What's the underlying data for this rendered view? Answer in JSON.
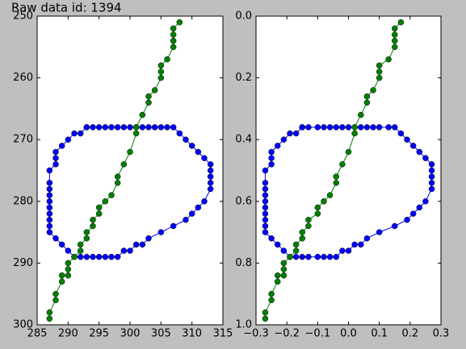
{
  "title": "Raw data id: 1394",
  "chart_data": [
    {
      "type": "line",
      "xlim": [
        285,
        315
      ],
      "xticks": [
        285,
        290,
        295,
        300,
        305,
        310,
        315
      ],
      "ylim": [
        300,
        250
      ],
      "yticks": [
        250,
        260,
        270,
        280,
        290,
        300
      ],
      "series": [
        {
          "color": "#0000ff",
          "x": [
            293,
            294,
            295,
            296,
            297,
            298,
            299,
            300,
            301,
            302,
            303,
            304,
            305,
            306,
            307,
            308,
            309,
            310,
            311,
            312,
            313,
            313,
            313,
            313,
            313,
            312,
            311,
            310,
            309,
            307,
            305,
            303,
            302,
            301,
            300,
            299,
            298,
            297,
            296,
            295,
            294,
            293,
            292,
            291,
            290,
            289,
            288,
            287,
            287,
            287,
            287,
            287,
            287,
            287,
            287,
            287,
            287,
            288,
            288,
            288,
            289,
            290,
            291,
            292,
            293
          ],
          "values": [
            268,
            268,
            268,
            268,
            268,
            268,
            268,
            268,
            268,
            268,
            268,
            268,
            268,
            268,
            268,
            269,
            270,
            271,
            272,
            273,
            274,
            275,
            276,
            277,
            278,
            280,
            281,
            282,
            283,
            284,
            285,
            286,
            287,
            287,
            288,
            288,
            289,
            289,
            289,
            289,
            289,
            289,
            289,
            289,
            288,
            287,
            286,
            285,
            284,
            283,
            282,
            281,
            280,
            279,
            278,
            277,
            275,
            274,
            273,
            272,
            271,
            270,
            269,
            269,
            268
          ]
        },
        {
          "color": "#008000",
          "x": [
            287,
            287,
            288,
            288,
            289,
            289,
            290,
            290,
            290,
            291,
            292,
            292,
            293,
            293,
            294,
            294,
            295,
            295,
            296,
            297,
            298,
            298,
            299,
            300,
            301,
            301,
            302,
            303,
            303,
            304,
            305,
            305,
            305,
            306,
            307,
            307,
            307,
            307,
            308
          ],
          "values": [
            299,
            298,
            296,
            295,
            293,
            292,
            292,
            291,
            290,
            289,
            288,
            287,
            286,
            285,
            284,
            283,
            282,
            281,
            280,
            279,
            277,
            276,
            274,
            272,
            269,
            268,
            266,
            264,
            263,
            262,
            260,
            259,
            258,
            257,
            255,
            254,
            253,
            252,
            251
          ]
        }
      ]
    },
    {
      "type": "line",
      "xlim": [
        -0.3,
        0.3
      ],
      "xticks": [
        {
          "value": -0.3,
          "label": "−0.3"
        },
        {
          "value": -0.2,
          "label": "−0.2"
        },
        {
          "value": -0.1,
          "label": "−0.1"
        },
        {
          "value": 0,
          "label": "0.0"
        },
        0.1,
        0.2,
        0.3
      ],
      "ylim": [
        1,
        0
      ],
      "yticks": [
        {
          "value": 0,
          "label": "0.0"
        },
        0.2,
        0.4,
        0.6,
        0.8,
        {
          "value": 1,
          "label": "1.0"
        }
      ],
      "series": [
        {
          "color": "#0000ff",
          "x": [
            -0.15,
            -0.13,
            -0.1,
            -0.08,
            -0.06,
            -0.04,
            -0.02,
            0,
            0.02,
            0.04,
            0.06,
            0.08,
            0.1,
            0.13,
            0.15,
            0.17,
            0.19,
            0.21,
            0.23,
            0.25,
            0.27,
            0.27,
            0.27,
            0.27,
            0.27,
            0.25,
            0.23,
            0.21,
            0.19,
            0.15,
            0.1,
            0.06,
            0.04,
            0.02,
            0,
            -0.02,
            -0.04,
            -0.06,
            -0.08,
            -0.1,
            -0.13,
            -0.15,
            -0.17,
            -0.19,
            -0.21,
            -0.23,
            -0.25,
            -0.27,
            -0.27,
            -0.27,
            -0.27,
            -0.27,
            -0.27,
            -0.27,
            -0.27,
            -0.27,
            -0.27,
            -0.25,
            -0.25,
            -0.25,
            -0.23,
            -0.21,
            -0.19,
            -0.17,
            -0.15
          ],
          "values": [
            0.36,
            0.36,
            0.36,
            0.36,
            0.36,
            0.36,
            0.36,
            0.36,
            0.36,
            0.36,
            0.36,
            0.36,
            0.36,
            0.36,
            0.36,
            0.38,
            0.4,
            0.42,
            0.44,
            0.46,
            0.48,
            0.5,
            0.52,
            0.54,
            0.56,
            0.6,
            0.62,
            0.64,
            0.66,
            0.68,
            0.7,
            0.72,
            0.74,
            0.74,
            0.76,
            0.76,
            0.78,
            0.78,
            0.78,
            0.78,
            0.78,
            0.78,
            0.78,
            0.78,
            0.76,
            0.74,
            0.72,
            0.7,
            0.68,
            0.66,
            0.64,
            0.62,
            0.6,
            0.58,
            0.56,
            0.54,
            0.5,
            0.48,
            0.46,
            0.44,
            0.42,
            0.4,
            0.38,
            0.38,
            0.36
          ]
        },
        {
          "color": "#008000",
          "x": [
            -0.27,
            -0.27,
            -0.25,
            -0.25,
            -0.23,
            -0.23,
            -0.21,
            -0.21,
            -0.21,
            -0.19,
            -0.17,
            -0.17,
            -0.15,
            -0.15,
            -0.13,
            -0.13,
            -0.1,
            -0.1,
            -0.08,
            -0.06,
            -0.04,
            -0.04,
            -0.02,
            0,
            0.02,
            0.02,
            0.04,
            0.06,
            0.06,
            0.08,
            0.1,
            0.1,
            0.1,
            0.13,
            0.15,
            0.15,
            0.15,
            0.15,
            0.17
          ],
          "values": [
            0.98,
            0.96,
            0.92,
            0.9,
            0.86,
            0.84,
            0.84,
            0.82,
            0.8,
            0.78,
            0.76,
            0.74,
            0.72,
            0.7,
            0.68,
            0.66,
            0.64,
            0.62,
            0.6,
            0.58,
            0.54,
            0.52,
            0.48,
            0.44,
            0.38,
            0.36,
            0.32,
            0.28,
            0.26,
            0.24,
            0.2,
            0.18,
            0.16,
            0.14,
            0.1,
            0.08,
            0.06,
            0.04,
            0.02
          ]
        }
      ]
    }
  ]
}
